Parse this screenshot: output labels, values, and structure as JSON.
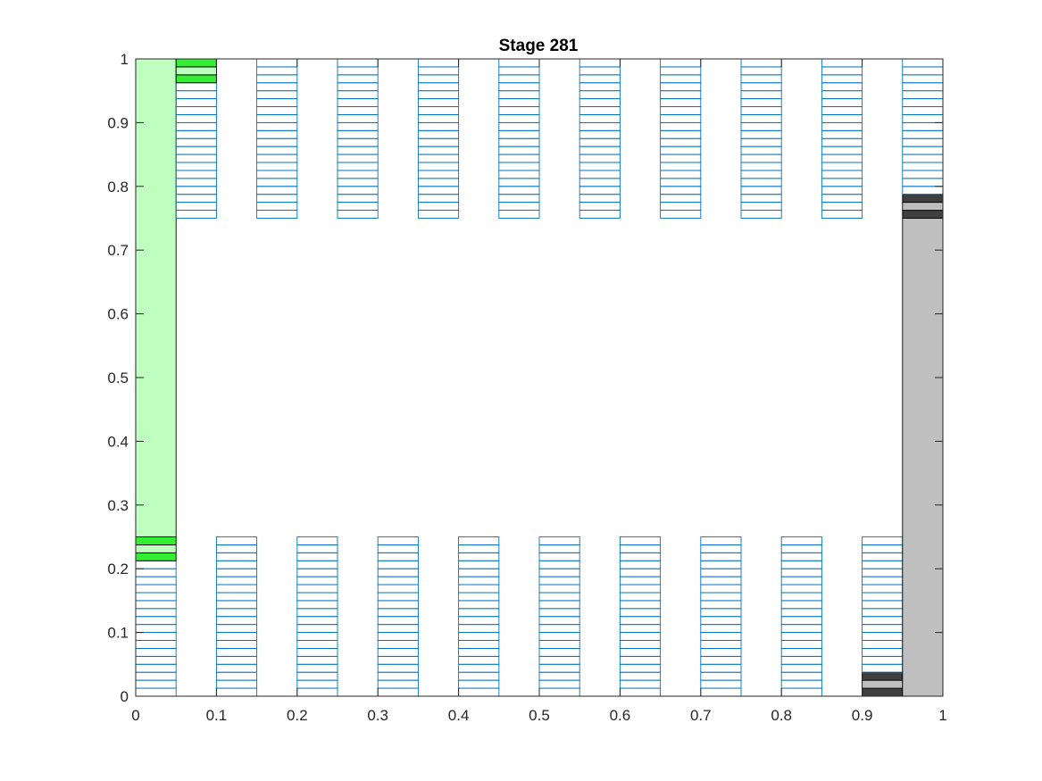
{
  "chart_data": {
    "type": "bar",
    "title": "Stage 281",
    "xlabel": "",
    "ylabel": "",
    "xlim": [
      0,
      1
    ],
    "ylim": [
      0,
      1
    ],
    "x_ticks": [
      "0",
      "0.1",
      "0.2",
      "0.3",
      "0.4",
      "0.5",
      "0.6",
      "0.7",
      "0.8",
      "0.9",
      "1"
    ],
    "y_ticks": [
      "0",
      "0.1",
      "0.2",
      "0.3",
      "0.4",
      "0.5",
      "0.6",
      "0.7",
      "0.8",
      "0.9",
      "1"
    ],
    "grid": false,
    "column_width": 0.05,
    "segment_height": 0.0125,
    "columns": [
      {
        "x": 0.0,
        "bands": [
          {
            "from": 0,
            "to": 0.2125,
            "fill": "outline"
          },
          {
            "from": 0.2125,
            "to": 0.225,
            "fill": "#33ee33"
          },
          {
            "from": 0.225,
            "to": 0.2375,
            "fill": "#bfffbf"
          },
          {
            "from": 0.2375,
            "to": 0.25,
            "fill": "#33ee33"
          },
          {
            "from": 0.25,
            "to": 1,
            "fill": "#bfffbf"
          }
        ]
      },
      {
        "x": 0.05,
        "bands": [
          {
            "from": 0.75,
            "to": 0.9625,
            "fill": "outline"
          },
          {
            "from": 0.9625,
            "to": 0.975,
            "fill": "#33ee33"
          },
          {
            "from": 0.975,
            "to": 0.9875,
            "fill": "#bfffbf"
          },
          {
            "from": 0.9875,
            "to": 1,
            "fill": "#33ee33"
          }
        ]
      },
      {
        "x": 0.1,
        "bands": [
          {
            "from": 0,
            "to": 0.25,
            "fill": "outline"
          }
        ]
      },
      {
        "x": 0.15,
        "bands": [
          {
            "from": 0.75,
            "to": 1,
            "fill": "outline"
          }
        ]
      },
      {
        "x": 0.2,
        "bands": [
          {
            "from": 0,
            "to": 0.25,
            "fill": "outline"
          }
        ]
      },
      {
        "x": 0.25,
        "bands": [
          {
            "from": 0.75,
            "to": 1,
            "fill": "outline"
          }
        ]
      },
      {
        "x": 0.3,
        "bands": [
          {
            "from": 0,
            "to": 0.25,
            "fill": "outline"
          }
        ]
      },
      {
        "x": 0.35,
        "bands": [
          {
            "from": 0.75,
            "to": 1,
            "fill": "outline"
          }
        ]
      },
      {
        "x": 0.4,
        "bands": [
          {
            "from": 0,
            "to": 0.25,
            "fill": "outline"
          }
        ]
      },
      {
        "x": 0.45,
        "bands": [
          {
            "from": 0.75,
            "to": 1,
            "fill": "outline"
          }
        ]
      },
      {
        "x": 0.5,
        "bands": [
          {
            "from": 0,
            "to": 0.25,
            "fill": "outline"
          }
        ]
      },
      {
        "x": 0.55,
        "bands": [
          {
            "from": 0.75,
            "to": 1,
            "fill": "outline"
          }
        ]
      },
      {
        "x": 0.6,
        "bands": [
          {
            "from": 0,
            "to": 0.25,
            "fill": "outline"
          }
        ]
      },
      {
        "x": 0.65,
        "bands": [
          {
            "from": 0.75,
            "to": 1,
            "fill": "outline"
          }
        ]
      },
      {
        "x": 0.7,
        "bands": [
          {
            "from": 0,
            "to": 0.25,
            "fill": "outline"
          }
        ]
      },
      {
        "x": 0.75,
        "bands": [
          {
            "from": 0.75,
            "to": 1,
            "fill": "outline"
          }
        ]
      },
      {
        "x": 0.8,
        "bands": [
          {
            "from": 0,
            "to": 0.25,
            "fill": "outline"
          }
        ]
      },
      {
        "x": 0.85,
        "bands": [
          {
            "from": 0.75,
            "to": 1,
            "fill": "outline"
          }
        ]
      },
      {
        "x": 0.9,
        "bands": [
          {
            "from": 0,
            "to": 0.0125,
            "fill": "#404040"
          },
          {
            "from": 0.0125,
            "to": 0.025,
            "fill": "#bfbfbf"
          },
          {
            "from": 0.025,
            "to": 0.0375,
            "fill": "#404040"
          },
          {
            "from": 0.0375,
            "to": 0.25,
            "fill": "outline"
          }
        ]
      },
      {
        "x": 0.95,
        "bands": [
          {
            "from": 0,
            "to": 0.75,
            "fill": "#bfbfbf"
          },
          {
            "from": 0.75,
            "to": 0.7625,
            "fill": "#404040"
          },
          {
            "from": 0.7625,
            "to": 0.775,
            "fill": "#bfbfbf"
          },
          {
            "from": 0.775,
            "to": 0.7875,
            "fill": "#404040"
          },
          {
            "from": 0.7875,
            "to": 1,
            "fill": "outline"
          }
        ]
      }
    ],
    "colors": {
      "outline_stroke": "#0072bd",
      "axis": "#262626"
    }
  }
}
